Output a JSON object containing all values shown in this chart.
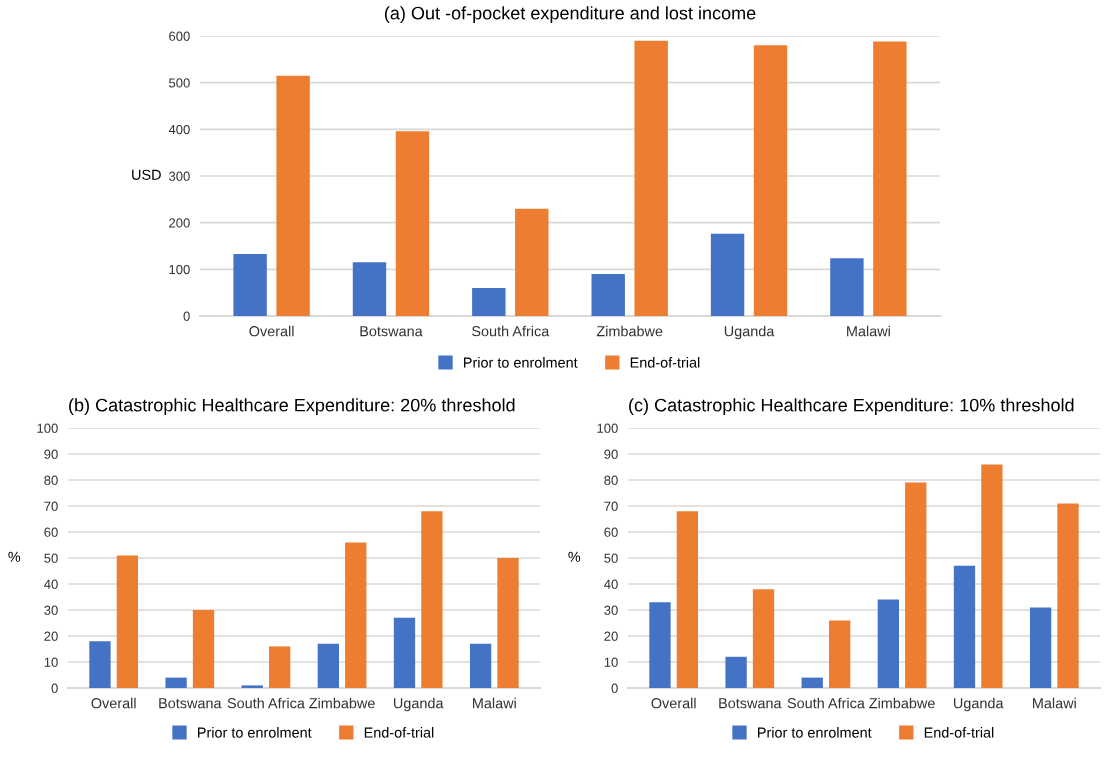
{
  "chart_data": [
    {
      "type": "bar",
      "title": "(a) Out -of-pocket expenditure and lost income",
      "ylabel": "USD",
      "categories": [
        "Overall",
        "Botswana",
        "South Africa",
        "Zimbabwe",
        "Uganda",
        "Malawi"
      ],
      "series": [
        {
          "name": "Prior to enrolment",
          "color": "#4472c4",
          "values": [
            133,
            115,
            60,
            90,
            176,
            124
          ]
        },
        {
          "name": "End-of-trial",
          "color": "#ed7d31",
          "values": [
            515,
            396,
            230,
            590,
            580,
            588
          ]
        }
      ],
      "ylim": [
        0,
        600
      ],
      "yticks": [
        0,
        100,
        200,
        300,
        400,
        500,
        600
      ],
      "grid": "y",
      "legend": "bottom"
    },
    {
      "type": "bar",
      "title": "(b) Catastrophic Healthcare Expenditure: 20% threshold",
      "ylabel": "%",
      "categories": [
        "Overall",
        "Botswana",
        "South Africa",
        "Zimbabwe",
        "Uganda",
        "Malawi"
      ],
      "series": [
        {
          "name": "Prior to enrolment",
          "color": "#4472c4",
          "values": [
            18,
            4,
            1,
            17,
            27,
            17
          ]
        },
        {
          "name": "End-of-trial",
          "color": "#ed7d31",
          "values": [
            51,
            30,
            16,
            56,
            68,
            50
          ]
        }
      ],
      "ylim": [
        0,
        100
      ],
      "yticks": [
        0,
        10,
        20,
        30,
        40,
        50,
        60,
        70,
        80,
        90,
        100
      ],
      "grid": "y",
      "legend": "bottom"
    },
    {
      "type": "bar",
      "title": "(c) Catastrophic Healthcare Expenditure: 10% threshold",
      "ylabel": "%",
      "categories": [
        "Overall",
        "Botswana",
        "South Africa",
        "Zimbabwe",
        "Uganda",
        "Malawi"
      ],
      "series": [
        {
          "name": "Prior to enrolment",
          "color": "#4472c4",
          "values": [
            33,
            12,
            4,
            34,
            47,
            31
          ]
        },
        {
          "name": "End-of-trial",
          "color": "#ed7d31",
          "values": [
            68,
            38,
            26,
            79,
            86,
            71
          ]
        }
      ],
      "ylim": [
        0,
        100
      ],
      "yticks": [
        0,
        10,
        20,
        30,
        40,
        50,
        60,
        70,
        80,
        90,
        100
      ],
      "grid": "y",
      "legend": "bottom"
    }
  ]
}
